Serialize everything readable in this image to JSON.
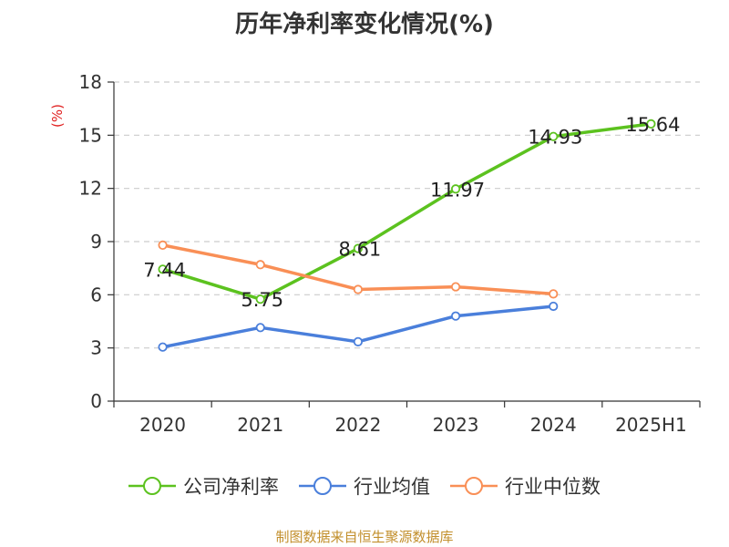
{
  "chart_data": {
    "type": "line",
    "title": "历年净利率变化情况(%)",
    "ylabel": "(%)",
    "xlabel": "",
    "categories": [
      "2020",
      "2021",
      "2022",
      "2023",
      "2024",
      "2025H1"
    ],
    "ylim": [
      0,
      18
    ],
    "yticks": [
      0,
      3,
      6,
      9,
      12,
      15,
      18
    ],
    "grid": true,
    "legend_position": "bottom",
    "series": [
      {
        "name": "公司净利率",
        "color": "#5cc21f",
        "values": [
          7.44,
          5.75,
          8.61,
          11.97,
          14.93,
          15.64
        ],
        "labels": [
          "7.44",
          "5.75",
          "8.61",
          "11.97",
          "14.93",
          "15.64"
        ]
      },
      {
        "name": "行业均值",
        "color": "#4a7fdb",
        "values": [
          3.05,
          4.15,
          3.35,
          4.8,
          5.35,
          null
        ]
      },
      {
        "name": "行业中位数",
        "color": "#f98f56",
        "values": [
          8.8,
          7.7,
          6.3,
          6.45,
          6.05,
          null
        ]
      }
    ]
  },
  "source": "制图数据来自恒生聚源数据库",
  "colors": {
    "axis_label": "#e02020",
    "text": "#333333",
    "grid": "#cccccc",
    "source": "#c28f2c"
  }
}
